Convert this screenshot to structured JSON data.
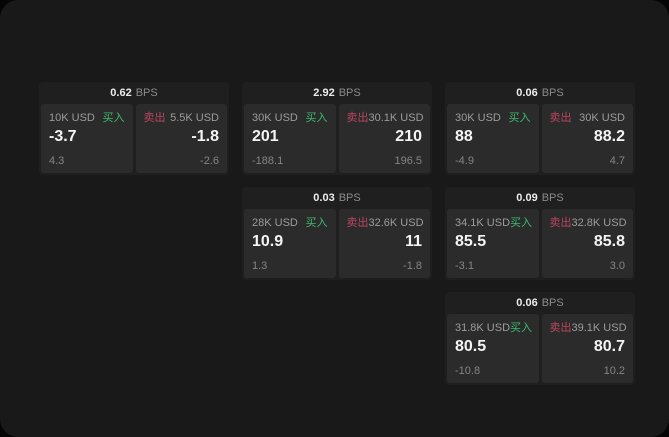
{
  "labels": {
    "buy": "买入",
    "sell": "卖出",
    "bps_unit": "BPS"
  },
  "colors": {
    "buy": "#3dbb6e",
    "sell": "#bb4560",
    "window_bg": "#191919",
    "card_bg": "#1f1f1f",
    "panel_bg": "#2b2b2b"
  },
  "cards": [
    {
      "bps": "0.62",
      "buy": {
        "notional": "10K USD",
        "value": "-3.7",
        "secondary": "4.3"
      },
      "sell": {
        "notional": "5.5K USD",
        "value": "-1.8",
        "secondary": "-2.6"
      }
    },
    {
      "bps": "2.92",
      "buy": {
        "notional": "30K USD",
        "value": "201",
        "secondary": "-188.1"
      },
      "sell": {
        "notional": "30.1K USD",
        "value": "210",
        "secondary": "196.5"
      }
    },
    {
      "bps": "0.06",
      "buy": {
        "notional": "30K USD",
        "value": "88",
        "secondary": "-4.9"
      },
      "sell": {
        "notional": "30K USD",
        "value": "88.2",
        "secondary": "4.7"
      }
    },
    {
      "bps": "0.03",
      "buy": {
        "notional": "28K USD",
        "value": "10.9",
        "secondary": "1.3"
      },
      "sell": {
        "notional": "32.6K USD",
        "value": "11",
        "secondary": "-1.8"
      }
    },
    {
      "bps": "0.09",
      "buy": {
        "notional": "34.1K USD",
        "value": "85.5",
        "secondary": "-3.1"
      },
      "sell": {
        "notional": "32.8K USD",
        "value": "85.8",
        "secondary": "3.0"
      }
    },
    {
      "bps": "0.06",
      "buy": {
        "notional": "31.8K USD",
        "value": "80.5",
        "secondary": "-10.8"
      },
      "sell": {
        "notional": "39.1K USD",
        "value": "80.7",
        "secondary": "10.2"
      }
    }
  ]
}
